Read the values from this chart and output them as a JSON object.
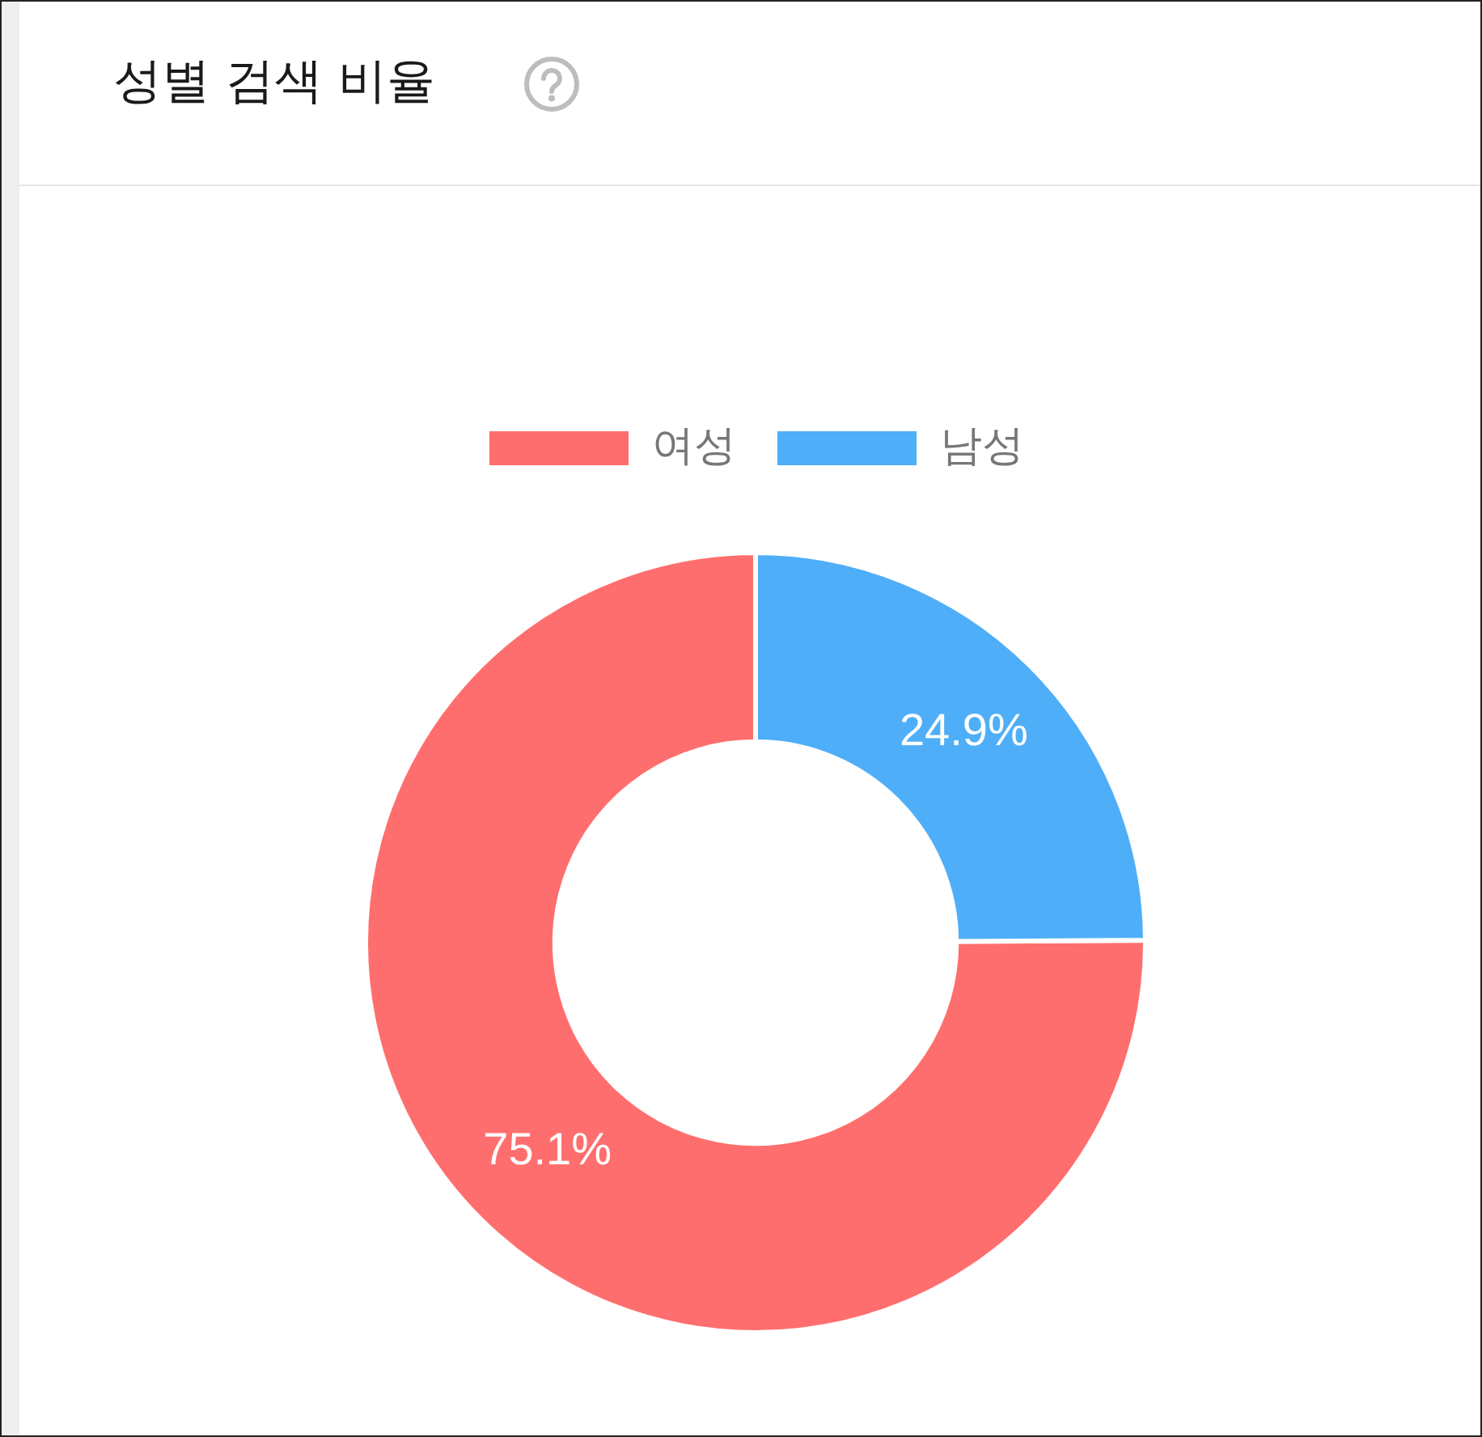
{
  "chart_data": {
    "type": "donut",
    "title": "성별 검색 비율",
    "categories": [
      "여성",
      "남성"
    ],
    "values": [
      75.1,
      24.9
    ],
    "colors": [
      "#ff6e6e",
      "#4faef8"
    ],
    "value_labels": [
      "75.1%",
      "24.9%"
    ],
    "legend": "top"
  }
}
